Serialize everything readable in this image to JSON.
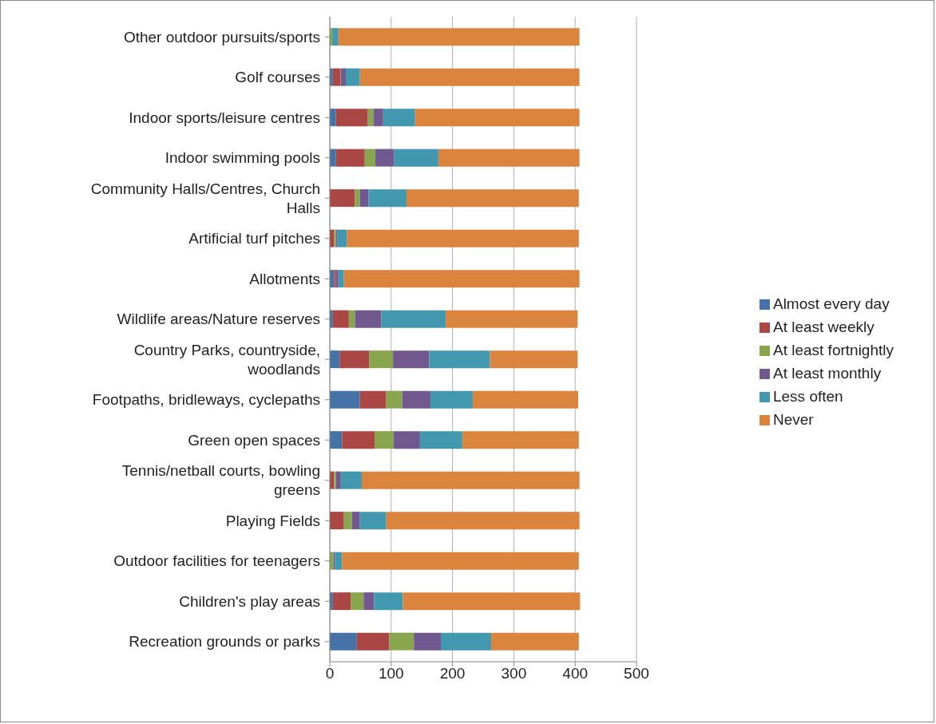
{
  "chart_data": {
    "type": "bar",
    "orientation": "horizontal",
    "stacked": true,
    "categories": [
      "Other outdoor pursuits/sports",
      "Golf courses",
      "Indoor sports/leisure centres",
      "Indoor swimming pools",
      "Community Halls/Centres, Church Halls",
      "Artificial turf pitches",
      "Allotments",
      "Wildlife areas/Nature reserves",
      "Country Parks, countryside, woodlands",
      "Footpaths, bridleways, cyclepaths",
      "Green open spaces",
      "Tennis/netball courts, bowling greens",
      "Playing Fields",
      "Outdoor facilities for teenagers",
      "Children's play areas",
      "Recreation grounds or parks"
    ],
    "series": [
      {
        "name": "Almost every day",
        "color": "#4572a7",
        "values": [
          0,
          5,
          10,
          10,
          0,
          0,
          7,
          5,
          16,
          49,
          20,
          0,
          0,
          0,
          5,
          44
        ]
      },
      {
        "name": "At least weekly",
        "color": "#aa4643",
        "values": [
          0,
          12,
          52,
          47,
          41,
          7,
          3,
          26,
          48,
          43,
          53,
          7,
          23,
          0,
          29,
          53
        ]
      },
      {
        "name": "At least fortnightly",
        "color": "#89a54e",
        "values": [
          4,
          1,
          9,
          17,
          8,
          3,
          0,
          10,
          39,
          26,
          31,
          3,
          13,
          6,
          21,
          40
        ]
      },
      {
        "name": "At least monthly",
        "color": "#71588f",
        "values": [
          0,
          8,
          16,
          31,
          14,
          2,
          4,
          43,
          59,
          46,
          43,
          8,
          13,
          2,
          17,
          44
        ]
      },
      {
        "name": "Less often",
        "color": "#4198af",
        "values": [
          10,
          23,
          52,
          72,
          62,
          16,
          9,
          105,
          99,
          69,
          69,
          34,
          43,
          12,
          47,
          82
        ]
      },
      {
        "name": "Never",
        "color": "#db843d",
        "values": [
          393,
          358,
          268,
          230,
          281,
          378,
          384,
          215,
          143,
          172,
          190,
          355,
          315,
          386,
          289,
          143
        ]
      }
    ],
    "xlim": [
      0,
      500
    ],
    "xticks": [
      0,
      100,
      200,
      300,
      400,
      500
    ],
    "grid": "x",
    "legend": "right"
  }
}
